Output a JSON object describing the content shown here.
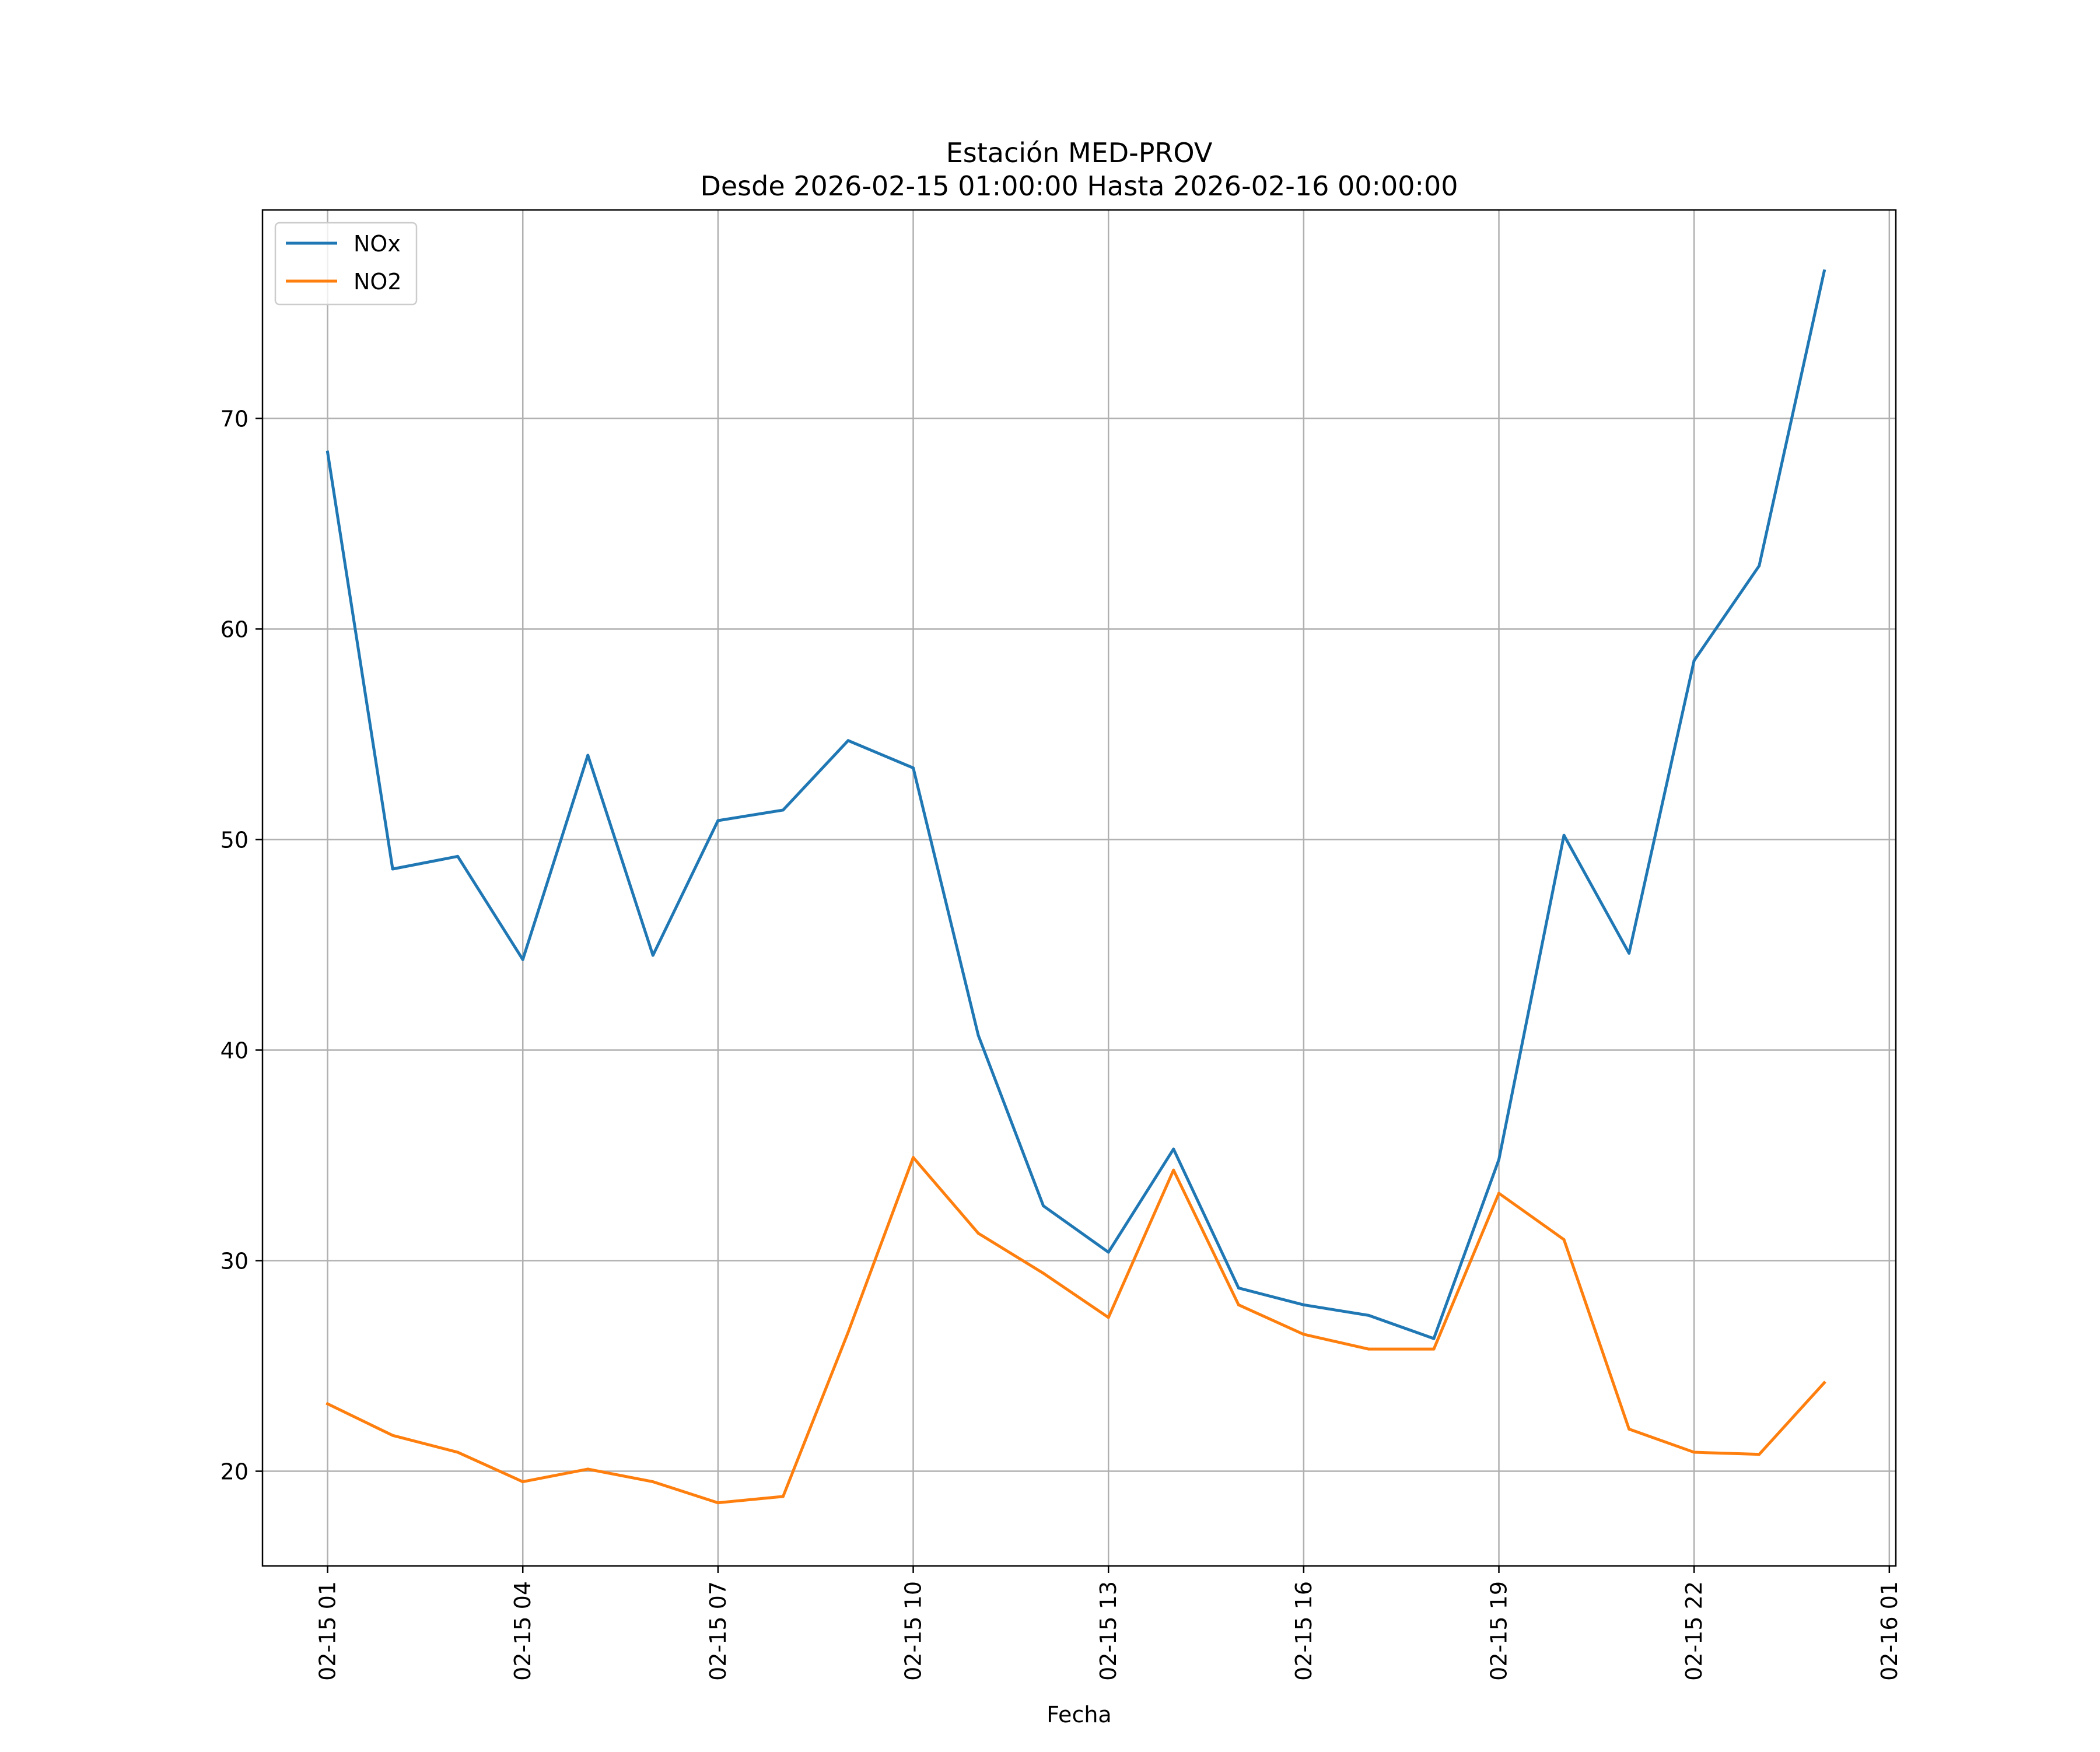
{
  "chart_data": {
    "type": "line",
    "title": "Estación MED-PROV",
    "subtitle": "Desde 2026-02-15 01:00:00 Hasta 2026-02-16 00:00:00",
    "xlabel": "Fecha",
    "ylabel": "",
    "x_hours": [
      1,
      2,
      3,
      4,
      5,
      6,
      7,
      8,
      9,
      10,
      11,
      12,
      13,
      14,
      15,
      16,
      17,
      18,
      19,
      20,
      21,
      22,
      23,
      24
    ],
    "xlim": [
      0.0,
      25.1
    ],
    "ylim": [
      15.5,
      79.9
    ],
    "x_ticks": [
      {
        "value": 1,
        "label": "02-15 01"
      },
      {
        "value": 4,
        "label": "02-15 04"
      },
      {
        "value": 7,
        "label": "02-15 07"
      },
      {
        "value": 10,
        "label": "02-15 10"
      },
      {
        "value": 13,
        "label": "02-15 13"
      },
      {
        "value": 16,
        "label": "02-15 16"
      },
      {
        "value": 19,
        "label": "02-15 19"
      },
      {
        "value": 22,
        "label": "02-15 22"
      },
      {
        "value": 25,
        "label": "02-16 01"
      }
    ],
    "y_ticks": [
      {
        "value": 20,
        "label": "20"
      },
      {
        "value": 30,
        "label": "30"
      },
      {
        "value": 40,
        "label": "40"
      },
      {
        "value": 50,
        "label": "50"
      },
      {
        "value": 60,
        "label": "60"
      },
      {
        "value": 70,
        "label": "70"
      }
    ],
    "grid": true,
    "legend_position": "top-left",
    "series": [
      {
        "name": "NOx",
        "color": "#1f77b4",
        "values": [
          68.4,
          48.6,
          49.2,
          44.3,
          54.0,
          44.5,
          50.9,
          51.4,
          54.7,
          53.4,
          40.7,
          32.6,
          30.4,
          35.3,
          28.7,
          27.9,
          27.4,
          26.3,
          34.8,
          50.2,
          44.6,
          58.5,
          63.0,
          77.0
        ]
      },
      {
        "name": "NO2",
        "color": "#ff7f0e",
        "values": [
          23.2,
          21.7,
          20.9,
          19.5,
          20.1,
          19.5,
          18.5,
          18.8,
          26.6,
          34.9,
          31.3,
          29.4,
          27.3,
          34.3,
          27.9,
          26.5,
          25.8,
          25.8,
          33.2,
          31.0,
          22.0,
          20.9,
          20.8,
          24.2
        ]
      }
    ]
  }
}
